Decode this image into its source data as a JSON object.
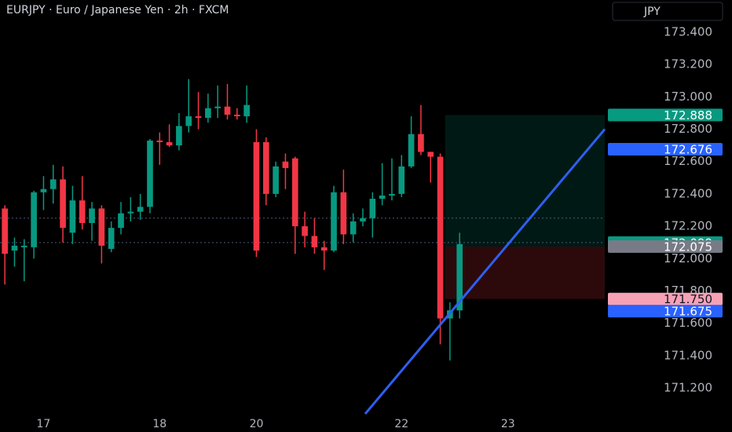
{
  "chart_data": {
    "type": "candlestick",
    "title": "EURJPY · Euro / Japanese Yen · 2h · FXCM",
    "currency": "JPY",
    "up_color": "#089981",
    "down_color": "#f23645",
    "x": [
      0,
      1,
      2,
      3,
      4,
      5,
      6,
      7,
      8,
      9,
      10,
      11,
      12,
      13,
      14,
      15,
      16,
      17,
      18,
      19,
      20,
      21,
      22,
      23,
      24,
      25,
      26,
      27,
      28,
      29,
      30,
      31,
      32,
      33,
      34,
      35,
      36,
      37,
      38,
      39,
      40,
      41,
      42,
      43,
      44,
      45,
      46,
      47
    ],
    "open": [
      172.31,
      172.05,
      172.07,
      172.07,
      172.41,
      172.43,
      172.49,
      172.16,
      172.36,
      172.22,
      172.31,
      172.06,
      172.19,
      172.28,
      172.29,
      172.32,
      172.73,
      172.72,
      172.7,
      172.82,
      172.88,
      172.87,
      172.93,
      172.94,
      172.89,
      172.88,
      172.72,
      172.72,
      172.4,
      172.6,
      172.62,
      172.2,
      172.14,
      172.07,
      172.05,
      172.41,
      172.15,
      172.23,
      172.25,
      172.37,
      172.39,
      172.4,
      172.57,
      172.77,
      172.66,
      172.63,
      171.63,
      171.68
    ],
    "high": [
      172.33,
      172.13,
      172.12,
      172.42,
      172.51,
      172.58,
      172.57,
      172.45,
      172.51,
      172.35,
      172.33,
      172.23,
      172.35,
      172.38,
      172.4,
      172.74,
      172.78,
      172.83,
      172.9,
      173.11,
      173.03,
      173.02,
      173.07,
      173.08,
      172.93,
      173.07,
      172.8,
      172.75,
      172.6,
      172.65,
      172.63,
      172.29,
      172.25,
      172.11,
      172.45,
      172.55,
      172.28,
      172.31,
      172.41,
      172.59,
      172.62,
      172.64,
      172.88,
      172.95,
      172.66,
      172.65,
      171.73,
      172.16
    ],
    "low": [
      171.84,
      171.95,
      171.86,
      172.0,
      172.3,
      172.34,
      172.1,
      172.09,
      172.18,
      172.11,
      171.97,
      172.04,
      172.15,
      172.23,
      172.24,
      172.28,
      172.58,
      172.69,
      172.67,
      172.78,
      172.8,
      172.84,
      172.87,
      172.86,
      172.86,
      172.84,
      172.01,
      172.33,
      172.38,
      172.43,
      172.03,
      172.07,
      172.03,
      171.93,
      172.04,
      172.09,
      172.1,
      172.2,
      172.13,
      172.33,
      172.36,
      172.38,
      172.56,
      172.64,
      172.47,
      171.47,
      171.37,
      171.63
    ],
    "close": [
      172.03,
      172.08,
      172.08,
      172.41,
      172.43,
      172.49,
      172.19,
      172.36,
      172.22,
      172.31,
      172.08,
      172.19,
      172.28,
      172.29,
      172.32,
      172.73,
      172.72,
      172.7,
      172.82,
      172.88,
      172.87,
      172.93,
      172.94,
      172.89,
      172.88,
      172.95,
      172.05,
      172.4,
      172.57,
      172.56,
      172.2,
      172.14,
      172.07,
      172.05,
      172.41,
      172.15,
      172.23,
      172.25,
      172.37,
      172.39,
      172.4,
      172.57,
      172.77,
      172.66,
      172.63,
      171.63,
      171.68,
      172.09
    ],
    "xlim": [
      -0.5,
      62
    ],
    "xticks": [
      {
        "value": 4,
        "label": "17"
      },
      {
        "value": 16,
        "label": "18"
      },
      {
        "value": 26,
        "label": "20"
      },
      {
        "value": 41,
        "label": "22"
      },
      {
        "value": 52,
        "label": "23"
      }
    ],
    "ylim": [
      170.928,
      173.599
    ],
    "yticks": [
      {
        "value": 171.2,
        "label": "171.200"
      },
      {
        "value": 171.4,
        "label": "171.400"
      },
      {
        "value": 171.6,
        "label": "171.600"
      },
      {
        "value": 171.8,
        "label": "171.800"
      },
      {
        "value": 172.0,
        "label": "172.000"
      },
      {
        "value": 172.2,
        "label": "172.200"
      },
      {
        "value": 172.4,
        "label": "172.400"
      },
      {
        "value": 172.6,
        "label": "172.600"
      },
      {
        "value": 172.8,
        "label": "172.800"
      },
      {
        "value": 173.0,
        "label": "173.000"
      },
      {
        "value": 173.2,
        "label": "173.200"
      },
      {
        "value": 173.4,
        "label": "173.400"
      }
    ],
    "hlines": [
      172.25,
      172.099
    ],
    "position": {
      "x": [
        45.5,
        62
      ],
      "target": 172.888,
      "entry": 172.075,
      "stop": 171.75
    },
    "trendline": {
      "x": [
        37.24,
        62
      ],
      "y": [
        171.04,
        172.8
      ]
    },
    "price_labels": [
      {
        "value": 172.888,
        "color": "#089981",
        "text_color": "#ffffff"
      },
      {
        "value": 172.676,
        "color": "#2962ff",
        "text_color": "#ffffff"
      },
      {
        "value": 172.099,
        "color": "#089981",
        "text_color": "#ffffff"
      },
      {
        "value": 172.075,
        "color": "#787b86",
        "text_color": "#ffffff"
      },
      {
        "value": 171.75,
        "label": "171.750",
        "color": "#f7a1b5",
        "text_color": "#131722"
      },
      {
        "value": 171.675,
        "color": "#2962ff",
        "text_color": "#ffffff"
      }
    ]
  }
}
